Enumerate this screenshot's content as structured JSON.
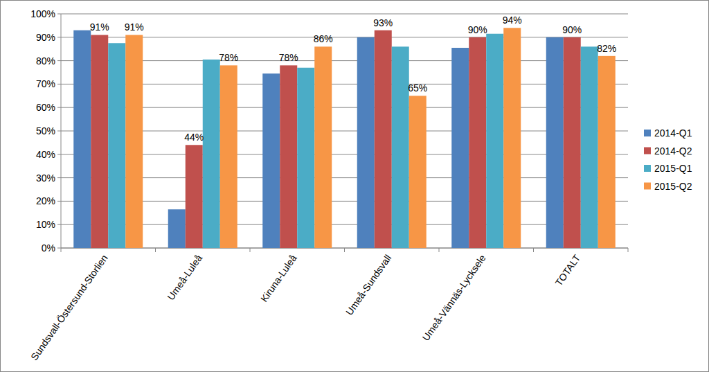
{
  "chart_data": {
    "type": "bar",
    "categories": [
      "Sundsvall-Östersund-Storlien",
      "Umeå-Luleå",
      "Kiruna-Luleå",
      "Umeå-Sundsvall",
      "Umeå-Vännäs-Lycksele",
      "TOTALT"
    ],
    "series": [
      {
        "name": "2014-Q1",
        "color": "#4f81bd",
        "values": [
          93,
          16.5,
          74.5,
          90,
          85.5,
          90
        ]
      },
      {
        "name": "2014-Q2",
        "color": "#c0504d",
        "values": [
          91,
          44,
          78,
          93,
          90,
          90
        ],
        "value_labels": [
          "91%",
          "44%",
          "78%",
          "93%",
          "90%",
          "90%"
        ]
      },
      {
        "name": "2015-Q1",
        "color": "#4bacc6",
        "values": [
          87.5,
          80.5,
          77,
          86,
          91.5,
          86
        ]
      },
      {
        "name": "2015-Q2",
        "color": "#f79646",
        "values": [
          91,
          78,
          86,
          65,
          94,
          82
        ],
        "value_labels": [
          "91%",
          "78%",
          "86%",
          "65%",
          "94%",
          "82%"
        ]
      }
    ],
    "ylim": [
      0,
      100
    ],
    "yticks": [
      {
        "value": 0,
        "label": "0%"
      },
      {
        "value": 10,
        "label": "10%"
      },
      {
        "value": 20,
        "label": "20%"
      },
      {
        "value": 30,
        "label": "30%"
      },
      {
        "value": 40,
        "label": "40%"
      },
      {
        "value": 50,
        "label": "50%"
      },
      {
        "value": 60,
        "label": "60%"
      },
      {
        "value": 70,
        "label": "70%"
      },
      {
        "value": 80,
        "label": "80%"
      },
      {
        "value": 90,
        "label": "90%"
      },
      {
        "value": 100,
        "label": "100%"
      }
    ],
    "grid": true,
    "legend": "right",
    "data_labels": true
  }
}
